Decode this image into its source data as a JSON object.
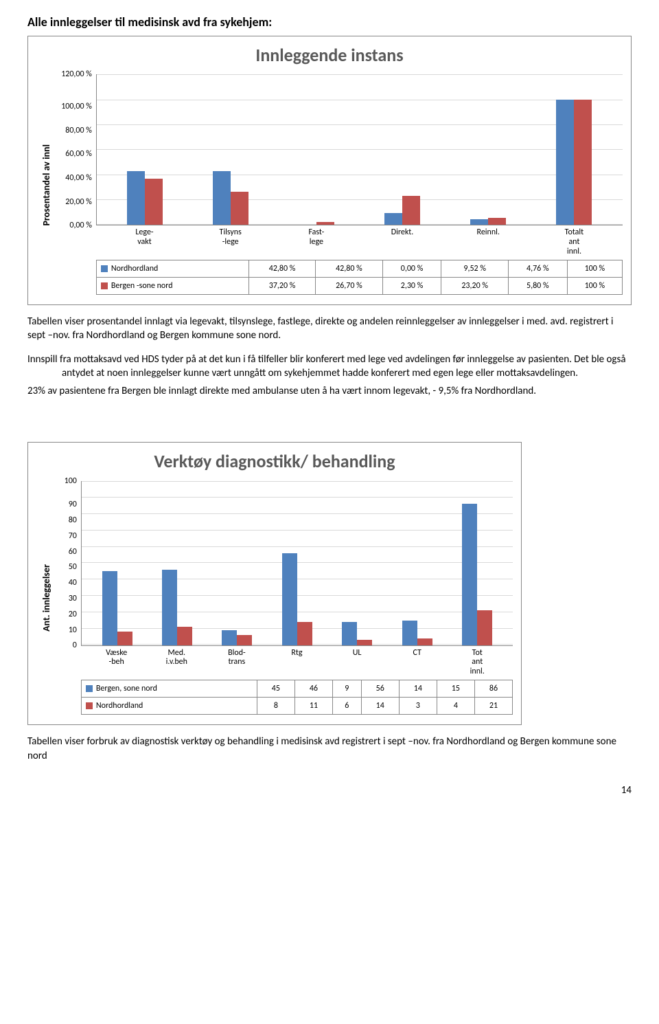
{
  "page_title": "Alle innleggelser til medisinsk avd fra sykehjem:",
  "chart1": {
    "title": "Innleggende instans",
    "y_axis_label": "Prosentandel av innl",
    "y_ticks": [
      "120,00 %",
      "100,00 %",
      "80,00 %",
      "60,00 %",
      "40,00 %",
      "20,00 %",
      "0,00 %"
    ],
    "y_max_numeric": 120,
    "categories": [
      "Lege-\nvakt",
      "Tilsyns\n-lege",
      "Fast-\nlege",
      "Direkt.",
      "Reinnl.",
      "Totalt\nant\ninnl."
    ],
    "series": [
      {
        "name": "Nordhordland",
        "color": "#4f81bd",
        "values_display": [
          "42,80 %",
          "42,80 %",
          "0,00 %",
          "9,52 %",
          "4,76 %",
          "100 %"
        ],
        "values_numeric": [
          42.8,
          42.8,
          0,
          9.52,
          4.76,
          100
        ]
      },
      {
        "name": "Bergen -sone nord",
        "color": "#c0504d",
        "values_display": [
          "37,20 %",
          "26,70 %",
          "2,30 %",
          "23,20 %",
          "5,80 %",
          "100 %"
        ],
        "values_numeric": [
          37.2,
          26.7,
          2.3,
          23.2,
          5.8,
          100
        ]
      }
    ],
    "grid_color": "#d9d9d9",
    "axis_color": "#888888"
  },
  "para1": "Tabellen viser prosentandel innlagt via legevakt, tilsynslege, fastlege, direkte og andelen reinnleggelser av innleggelser  i med. avd. registrert i sept –nov. fra Nordhordland og Bergen kommune sone nord.",
  "para2a": "Innspill fra mottaksavd ved HDS tyder på at det kun i få tilfeller blir konferert med lege ved avdelingen før innleggelse av pasienten. Det ble også antydet at noen innleggelser kunne vært unngått om sykehjemmet hadde konferert med egen lege eller mottaksavdelingen.",
  "para2b": "23% av pasientene fra Bergen ble innlagt direkte med ambulanse uten å ha vært innom legevakt, - 9,5% fra Nordhordland.",
  "chart2": {
    "title": "Verktøy diagnostikk/ behandling",
    "y_axis_label": "Ant. innleggelser",
    "y_ticks": [
      "100",
      "90",
      "80",
      "70",
      "60",
      "50",
      "40",
      "30",
      "20",
      "10",
      "0"
    ],
    "y_max_numeric": 100,
    "categories": [
      "Væske\n-beh",
      "Med.\ni.v.beh",
      "Blod-\ntrans",
      "Rtg",
      "UL",
      "CT",
      "Tot\nant\ninnl."
    ],
    "series": [
      {
        "name": "Bergen, sone nord",
        "color": "#4f81bd",
        "values_display": [
          "45",
          "46",
          "9",
          "56",
          "14",
          "15",
          "86"
        ],
        "values_numeric": [
          45,
          46,
          9,
          56,
          14,
          15,
          86
        ]
      },
      {
        "name": "Nordhordland",
        "color": "#c0504d",
        "values_display": [
          "8",
          "11",
          "6",
          "14",
          "3",
          "4",
          "21"
        ],
        "values_numeric": [
          8,
          11,
          6,
          14,
          3,
          4,
          21
        ]
      }
    ],
    "grid_color": "#d9d9d9",
    "axis_color": "#888888"
  },
  "para3": "Tabellen viser forbruk av diagnostisk verktøy og behandling i medisinsk avd registrert i sept –nov. fra Nordhordland og Bergen kommune sone nord",
  "page_number": "14"
}
